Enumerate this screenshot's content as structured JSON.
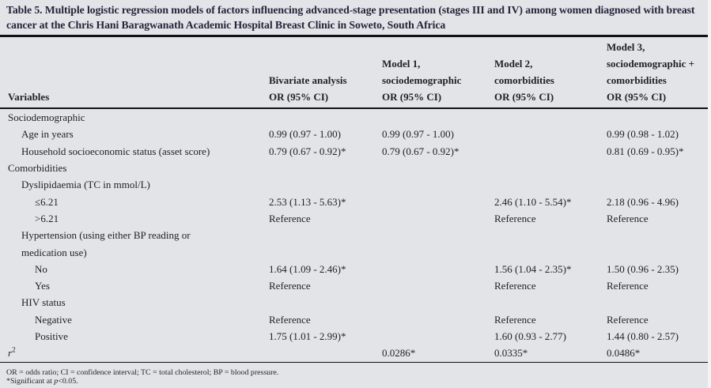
{
  "page": {
    "background_color": "#e2e4e8",
    "rule_color": "#101016",
    "text_color": "#1f2028"
  },
  "table": {
    "title": "Table 5. Multiple logistic regression models of factors influencing advanced-stage presentation (stages III and IV) among women diagnosed with breast cancer at the Chris Hani Baragwanath Academic Hospital Breast Clinic in Soweto, South Africa",
    "header": {
      "variables": "Variables",
      "bivariate": {
        "l1": "Bivariate analysis",
        "l2": "OR (95% CI)"
      },
      "model1": {
        "l1": "Model 1,",
        "l2": "sociodemographic",
        "l3": "OR (95% CI)"
      },
      "model2": {
        "l1": "Model 2,",
        "l2": "comorbidities",
        "l3": "OR (95% CI)"
      },
      "model3": {
        "l1": "Model 3,",
        "l2": "sociodemographic +",
        "l3": "comorbidities",
        "l4": "OR (95% CI)"
      }
    },
    "rows": [
      {
        "label": "Sociodemographic",
        "c1": "",
        "c2": "",
        "c3": "",
        "c4": ""
      },
      {
        "label": "Age in years",
        "c1": "0.99 (0.97 - 1.00)",
        "c2": "0.99 (0.97 - 1.00)",
        "c3": "",
        "c4": "0.99 (0.98 - 1.02)"
      },
      {
        "label": "Household socioeconomic status (asset score)",
        "c1": "0.79 (0.67 - 0.92)*",
        "c2": "0.79 (0.67 - 0.92)*",
        "c3": "",
        "c4": "0.81 (0.69 - 0.95)*"
      },
      {
        "label": "Comorbidities",
        "c1": "",
        "c2": "",
        "c3": "",
        "c4": ""
      },
      {
        "label": "Dyslipidaemia (TC in mmol/L)",
        "c1": "",
        "c2": "",
        "c3": "",
        "c4": ""
      },
      {
        "label": "≤6.21",
        "c1": "2.53 (1.13 - 5.63)*",
        "c2": "",
        "c3": "2.46 (1.10 - 5.54)*",
        "c4": "2.18 (0.96 - 4.96)"
      },
      {
        "label": ">6.21",
        "c1": "Reference",
        "c2": "",
        "c3": "Reference",
        "c4": "Reference"
      },
      {
        "label": "Hypertension (using either BP reading or",
        "label2": "medication use)",
        "c1": "",
        "c2": "",
        "c3": "",
        "c4": ""
      },
      {
        "label": "No",
        "c1": "1.64 (1.09 - 2.46)*",
        "c2": "",
        "c3": "1.56 (1.04 - 2.35)*",
        "c4": "1.50 (0.96 - 2.35)"
      },
      {
        "label": "Yes",
        "c1": "Reference",
        "c2": "",
        "c3": "Reference",
        "c4": "Reference"
      },
      {
        "label": "HIV status",
        "c1": "",
        "c2": "",
        "c3": "",
        "c4": ""
      },
      {
        "label": "Negative",
        "c1": "Reference",
        "c2": "",
        "c3": "Reference",
        "c4": "Reference"
      },
      {
        "label": "Positive",
        "c1": "1.75 (1.01 - 2.99)*",
        "c2": "",
        "c3": "1.60 (0.93 - 2.77)",
        "c4": "1.44 (0.80 - 2.57)"
      }
    ],
    "r2_row": {
      "base": "r",
      "sup": "2",
      "c1": "",
      "c2": "0.0286*",
      "c3": "0.0335*",
      "c4": "0.0486*"
    },
    "footnotes": {
      "abbreviations": "OR = odds ratio; CI = confidence interval; TC = total cholesterol; BP = blood pressure.",
      "sig_pre": "*Significant at ",
      "sig_var": "p",
      "sig_post": "<0.05."
    }
  }
}
